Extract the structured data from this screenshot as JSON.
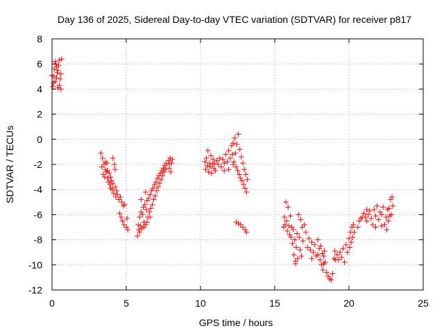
{
  "chart_data": {
    "type": "scatter",
    "title": "Day 136 of 2025, Sidereal Day-to-day VTEC variation (SDTVAR) for receiver p817",
    "xlabel": "GPS time / hours",
    "ylabel": "SDTVAR / TECUs",
    "xlim": [
      0,
      25
    ],
    "ylim": [
      -12,
      8
    ],
    "x_ticks": [
      0,
      5,
      10,
      15,
      20,
      25
    ],
    "y_ticks": [
      -12,
      -10,
      -8,
      -6,
      -4,
      -2,
      0,
      2,
      4,
      6,
      8
    ],
    "grid": true,
    "marker": "plus",
    "color": "#ff0000",
    "series": [
      {
        "points": [
          [
            0.05,
            4.2
          ],
          [
            0.1,
            5.0
          ],
          [
            0.15,
            5.6
          ],
          [
            0.2,
            4.6
          ],
          [
            0.25,
            6.0
          ],
          [
            0.3,
            4.9
          ],
          [
            0.35,
            5.3
          ],
          [
            0.4,
            4.1
          ],
          [
            0.45,
            5.9
          ],
          [
            0.5,
            6.3
          ],
          [
            0.55,
            4.8
          ],
          [
            0.6,
            5.2
          ],
          [
            0.65,
            6.4
          ],
          [
            0.1,
            4.5
          ],
          [
            0.3,
            5.8
          ],
          [
            0.5,
            4.3
          ],
          [
            0.2,
            6.2
          ],
          [
            0.4,
            5.5
          ],
          [
            0.6,
            4.0
          ],
          [
            0.0,
            5.1
          ],
          [
            3.3,
            -1.1
          ],
          [
            3.35,
            -2.2
          ],
          [
            3.4,
            -1.5
          ],
          [
            3.45,
            -2.8
          ],
          [
            3.5,
            -2.0
          ],
          [
            3.55,
            -3.0
          ],
          [
            3.6,
            -2.4
          ],
          [
            3.65,
            -2.6
          ],
          [
            3.7,
            -1.9
          ],
          [
            3.75,
            -3.1
          ],
          [
            3.8,
            -3.4
          ],
          [
            3.85,
            -2.7
          ],
          [
            3.9,
            -3.6
          ],
          [
            3.95,
            -3.9
          ],
          [
            4.0,
            -3.3
          ],
          [
            4.05,
            -4.0
          ],
          [
            4.1,
            -1.5
          ],
          [
            4.15,
            -4.3
          ],
          [
            4.2,
            -2.0
          ],
          [
            4.25,
            -3.8
          ],
          [
            4.3,
            -4.6
          ],
          [
            4.35,
            -4.1
          ],
          [
            4.4,
            -4.4
          ],
          [
            4.5,
            -4.8
          ],
          [
            4.55,
            -5.9
          ],
          [
            4.6,
            -4.6
          ],
          [
            4.65,
            -6.2
          ],
          [
            4.7,
            -5.0
          ],
          [
            4.75,
            -6.5
          ],
          [
            4.8,
            -5.3
          ],
          [
            4.85,
            -6.8
          ],
          [
            4.9,
            -5.2
          ],
          [
            5.0,
            -7.0
          ],
          [
            5.05,
            -6.3
          ],
          [
            5.1,
            -7.2
          ],
          [
            3.6,
            -1.8
          ],
          [
            3.75,
            -2.5
          ],
          [
            3.95,
            -3.0
          ],
          [
            4.1,
            -3.5
          ],
          [
            4.25,
            -2.4
          ],
          [
            5.75,
            -7.7
          ],
          [
            5.8,
            -6.8
          ],
          [
            5.85,
            -7.2
          ],
          [
            5.9,
            -6.2
          ],
          [
            5.95,
            -6.9
          ],
          [
            6.0,
            -5.8
          ],
          [
            6.05,
            -7.1
          ],
          [
            6.1,
            -6.0
          ],
          [
            6.15,
            -5.4
          ],
          [
            6.2,
            -6.6
          ],
          [
            6.25,
            -5.2
          ],
          [
            6.3,
            -6.8
          ],
          [
            6.35,
            -5.6
          ],
          [
            6.4,
            -4.9
          ],
          [
            6.45,
            -6.2
          ],
          [
            6.5,
            -4.7
          ],
          [
            6.55,
            -5.8
          ],
          [
            6.6,
            -4.4
          ],
          [
            6.65,
            -5.5
          ],
          [
            6.7,
            -4.1
          ],
          [
            6.75,
            -5.2
          ],
          [
            6.8,
            -3.9
          ],
          [
            6.85,
            -4.8
          ],
          [
            6.9,
            -3.6
          ],
          [
            6.95,
            -4.5
          ],
          [
            7.0,
            -3.4
          ],
          [
            7.05,
            -4.1
          ],
          [
            7.1,
            -3.1
          ],
          [
            7.15,
            -3.8
          ],
          [
            7.2,
            -2.9
          ],
          [
            7.25,
            -3.5
          ],
          [
            7.3,
            -2.7
          ],
          [
            7.35,
            -3.2
          ],
          [
            7.4,
            -2.5
          ],
          [
            7.45,
            -2.9
          ],
          [
            7.5,
            -2.3
          ],
          [
            7.55,
            -2.6
          ],
          [
            7.6,
            -2.1
          ],
          [
            7.65,
            -2.4
          ],
          [
            7.7,
            -1.9
          ],
          [
            6.2,
            -7.0
          ],
          [
            6.4,
            -6.6
          ],
          [
            6.6,
            -6.2
          ],
          [
            5.9,
            -7.4
          ],
          [
            6.0,
            -4.8
          ],
          [
            6.3,
            -4.2
          ],
          [
            7.85,
            -1.7
          ],
          [
            7.9,
            -2.3
          ],
          [
            7.95,
            -1.5
          ],
          [
            8.0,
            -2.6
          ],
          [
            8.05,
            -1.9
          ],
          [
            8.1,
            -1.6
          ],
          [
            7.9,
            -2.0
          ],
          [
            10.3,
            -1.8
          ],
          [
            10.35,
            -2.4
          ],
          [
            10.4,
            -1.5
          ],
          [
            10.45,
            -2.1
          ],
          [
            10.5,
            -0.9
          ],
          [
            10.55,
            -2.6
          ],
          [
            10.6,
            -1.9
          ],
          [
            10.65,
            -2.2
          ],
          [
            10.7,
            -1.3
          ],
          [
            10.75,
            -2.7
          ],
          [
            10.8,
            -2.0
          ],
          [
            10.85,
            -1.6
          ],
          [
            10.9,
            -2.3
          ],
          [
            10.95,
            -1.9
          ],
          [
            11.0,
            -2.5
          ],
          [
            11.1,
            -1.7
          ],
          [
            11.2,
            -2.0
          ],
          [
            11.3,
            -1.5
          ],
          [
            11.4,
            -2.2
          ],
          [
            11.5,
            -1.6
          ],
          [
            11.6,
            -1.9
          ],
          [
            11.7,
            -1.2
          ],
          [
            11.8,
            -1.8
          ],
          [
            11.9,
            -0.9
          ],
          [
            12.0,
            -1.5
          ],
          [
            12.1,
            -0.5
          ],
          [
            12.15,
            -1.2
          ],
          [
            12.2,
            -0.3
          ],
          [
            12.25,
            -1.8
          ],
          [
            12.3,
            0.1
          ],
          [
            12.35,
            -1.1
          ],
          [
            12.4,
            -2.2
          ],
          [
            12.45,
            -0.4
          ],
          [
            12.5,
            -2.5
          ],
          [
            12.55,
            0.4
          ],
          [
            12.6,
            -2.8
          ],
          [
            12.65,
            -0.8
          ],
          [
            12.7,
            -3.1
          ],
          [
            12.75,
            -1.4
          ],
          [
            12.8,
            -3.3
          ],
          [
            12.85,
            -1.9
          ],
          [
            12.9,
            -3.6
          ],
          [
            12.95,
            -2.4
          ],
          [
            13.0,
            -3.9
          ],
          [
            13.05,
            -2.8
          ],
          [
            13.1,
            -4.2
          ],
          [
            13.15,
            -3.2
          ],
          [
            11.6,
            -2.5
          ],
          [
            11.9,
            -2.4
          ],
          [
            12.2,
            -2.0
          ],
          [
            12.4,
            -6.6
          ],
          [
            12.55,
            -6.7
          ],
          [
            12.7,
            -6.8
          ],
          [
            12.85,
            -7.0
          ],
          [
            13.0,
            -7.2
          ],
          [
            13.1,
            -7.4
          ],
          [
            15.6,
            -7.0
          ],
          [
            15.65,
            -6.2
          ],
          [
            15.7,
            -6.8
          ],
          [
            15.75,
            -5.0
          ],
          [
            15.8,
            -6.5
          ],
          [
            15.85,
            -7.3
          ],
          [
            15.9,
            -5.4
          ],
          [
            15.95,
            -6.9
          ],
          [
            16.0,
            -7.6
          ],
          [
            16.05,
            -6.1
          ],
          [
            16.1,
            -7.8
          ],
          [
            16.15,
            -7.0
          ],
          [
            16.2,
            -8.3
          ],
          [
            16.25,
            -7.2
          ],
          [
            16.3,
            -9.2
          ],
          [
            16.35,
            -8.0
          ],
          [
            16.4,
            -9.7
          ],
          [
            16.45,
            -8.6
          ],
          [
            16.5,
            -7.5
          ],
          [
            16.55,
            -9.5
          ],
          [
            16.6,
            -6.0
          ],
          [
            16.65,
            -7.8
          ],
          [
            16.7,
            -8.8
          ],
          [
            16.75,
            -6.4
          ],
          [
            16.8,
            -9.3
          ],
          [
            16.85,
            -7.0
          ],
          [
            16.9,
            -8.1
          ],
          [
            17.0,
            -6.8
          ],
          [
            17.1,
            -7.4
          ],
          [
            17.2,
            -8.6
          ],
          [
            17.3,
            -7.9
          ],
          [
            17.4,
            -8.8
          ],
          [
            17.5,
            -8.2
          ],
          [
            17.6,
            -9.0
          ],
          [
            17.7,
            -8.4
          ],
          [
            17.8,
            -9.3
          ],
          [
            17.9,
            -8.0
          ],
          [
            18.0,
            -8.7
          ],
          [
            18.05,
            -9.6
          ],
          [
            18.1,
            -8.5
          ],
          [
            18.15,
            -10.0
          ],
          [
            18.2,
            -9.1
          ],
          [
            18.25,
            -10.4
          ],
          [
            18.3,
            -9.3
          ],
          [
            18.35,
            -8.9
          ],
          [
            18.4,
            -9.8
          ],
          [
            18.5,
            -10.6
          ],
          [
            18.6,
            -10.9
          ],
          [
            18.7,
            -11.1
          ],
          [
            18.8,
            -11.2
          ],
          [
            18.9,
            -10.7
          ],
          [
            19.0,
            -9.5
          ],
          [
            19.05,
            -8.9
          ],
          [
            19.1,
            -9.6
          ],
          [
            19.2,
            -9.2
          ],
          [
            19.3,
            -9.6
          ],
          [
            19.4,
            -9.0
          ],
          [
            19.5,
            -9.4
          ],
          [
            19.6,
            -8.7
          ],
          [
            19.7,
            -9.8
          ],
          [
            19.8,
            -8.4
          ],
          [
            19.9,
            -9.0
          ],
          [
            20.0,
            -7.9
          ],
          [
            20.05,
            -8.6
          ],
          [
            20.1,
            -7.4
          ],
          [
            20.15,
            -8.2
          ],
          [
            20.2,
            -7.0
          ],
          [
            20.25,
            -7.8
          ],
          [
            20.3,
            -6.8
          ],
          [
            20.35,
            -7.4
          ],
          [
            16.4,
            -9.9
          ],
          [
            17.5,
            -9.5
          ],
          [
            17.9,
            -9.2
          ],
          [
            18.3,
            -9.9
          ],
          [
            20.6,
            -7.0
          ],
          [
            20.7,
            -6.5
          ],
          [
            20.8,
            -6.3
          ],
          [
            20.9,
            -6.2
          ],
          [
            21.0,
            -5.9
          ],
          [
            21.1,
            -6.2
          ],
          [
            21.2,
            -6.5
          ],
          [
            21.3,
            -6.0
          ],
          [
            21.4,
            -5.7
          ],
          [
            21.5,
            -6.3
          ],
          [
            21.6,
            -6.8
          ],
          [
            21.7,
            -5.6
          ],
          [
            21.8,
            -6.1
          ],
          [
            21.9,
            -5.3
          ],
          [
            22.0,
            -6.4
          ],
          [
            22.1,
            -5.8
          ],
          [
            22.2,
            -6.0
          ],
          [
            22.3,
            -5.4
          ],
          [
            22.4,
            -6.8
          ],
          [
            22.5,
            -6.2
          ],
          [
            22.55,
            -7.2
          ],
          [
            22.6,
            -5.6
          ],
          [
            22.65,
            -6.5
          ],
          [
            22.7,
            -5.5
          ],
          [
            22.75,
            -6.1
          ],
          [
            22.8,
            -4.8
          ],
          [
            22.85,
            -6.0
          ],
          [
            22.9,
            -4.6
          ],
          [
            22.95,
            -5.3
          ],
          [
            21.2,
            -5.6
          ],
          [
            21.8,
            -7.0
          ],
          [
            22.2,
            -6.9
          ]
        ]
      }
    ]
  }
}
